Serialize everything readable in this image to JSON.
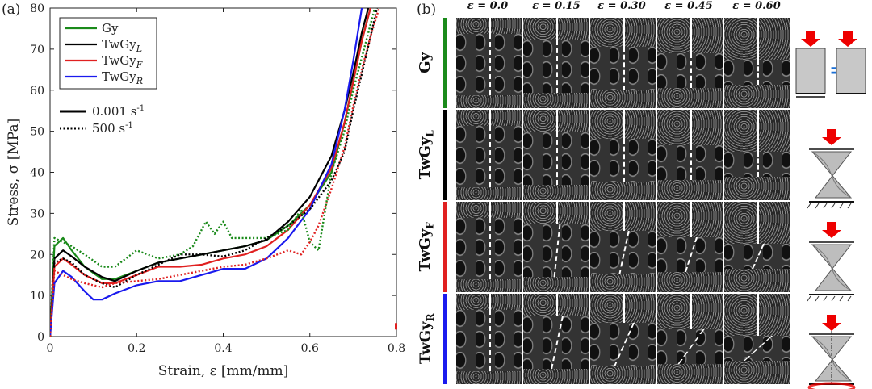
{
  "panel_a_label": "(a)",
  "panel_b_label": "(b)",
  "chart_data": {
    "type": "line",
    "xlabel": "Strain, ε [mm/mm]",
    "ylabel": "Stress, σ [MPa]",
    "xlim": [
      0,
      0.8
    ],
    "ylim": [
      0,
      80
    ],
    "xticks": [
      0,
      0.2,
      0.4,
      0.6,
      0.8
    ],
    "xtick_labels": [
      "0",
      "0.2",
      "0.4",
      "0.6",
      "0.8"
    ],
    "yticks": [
      0,
      10,
      20,
      30,
      40,
      50,
      60,
      70,
      80
    ],
    "ytick_labels": [
      "0",
      "10",
      "20",
      "30",
      "40",
      "50",
      "60",
      "70",
      "80"
    ],
    "legend_location": "top-left",
    "legend_main": [
      "Gy",
      "TwGy",
      "TwGy",
      "TwGy"
    ],
    "legend_sub": [
      "",
      "L",
      "F",
      "R"
    ],
    "legend_styles": [
      {
        "label": "0.001 s",
        "sup": "-1",
        "style": "solid"
      },
      {
        "label": "500 s",
        "sup": "-1",
        "style": "dotted"
      }
    ],
    "series": [
      {
        "name": "Gy",
        "rate": "0.001",
        "color": "#1a8a1a",
        "dash": "solid",
        "x": [
          0,
          0.01,
          0.03,
          0.05,
          0.08,
          0.12,
          0.15,
          0.2,
          0.25,
          0.3,
          0.35,
          0.4,
          0.45,
          0.5,
          0.55,
          0.6,
          0.65,
          0.68,
          0.7,
          0.72,
          0.74
        ],
        "y": [
          0,
          22,
          24,
          21,
          17,
          14,
          14,
          16,
          18,
          19,
          20,
          21,
          22,
          23.5,
          27,
          32,
          40,
          52,
          62,
          72,
          80
        ]
      },
      {
        "name": "TwGy_L",
        "rate": "0.001",
        "color": "#000000",
        "dash": "solid",
        "x": [
          0,
          0.01,
          0.03,
          0.05,
          0.08,
          0.12,
          0.15,
          0.2,
          0.25,
          0.3,
          0.35,
          0.4,
          0.45,
          0.5,
          0.55,
          0.6,
          0.65,
          0.68,
          0.7,
          0.72,
          0.735
        ],
        "y": [
          0,
          19,
          21,
          19.5,
          17,
          14.5,
          13.5,
          16,
          18,
          19,
          20,
          21,
          22,
          23.5,
          28,
          34,
          44,
          55,
          64,
          74,
          80
        ]
      },
      {
        "name": "TwGy_F",
        "rate": "0.001",
        "color": "#e02020",
        "dash": "solid",
        "x": [
          0,
          0.01,
          0.03,
          0.05,
          0.08,
          0.12,
          0.15,
          0.2,
          0.25,
          0.3,
          0.35,
          0.4,
          0.45,
          0.5,
          0.55,
          0.6,
          0.65,
          0.68,
          0.7,
          0.72,
          0.74
        ],
        "y": [
          0,
          17,
          19,
          17.5,
          15,
          13,
          13,
          15,
          17,
          17,
          17.5,
          19,
          20,
          22,
          26,
          32,
          41,
          52,
          62,
          72,
          80
        ]
      },
      {
        "name": "TwGy_R",
        "rate": "0.001",
        "color": "#1a1aee",
        "dash": "solid",
        "x": [
          0,
          0.01,
          0.03,
          0.05,
          0.08,
          0.1,
          0.12,
          0.15,
          0.2,
          0.25,
          0.3,
          0.35,
          0.4,
          0.45,
          0.5,
          0.55,
          0.6,
          0.65,
          0.68,
          0.7,
          0.72
        ],
        "y": [
          0,
          13,
          16,
          14.5,
          11,
          9,
          9,
          10.5,
          12.5,
          13.5,
          13.5,
          15,
          16.5,
          16.5,
          19,
          24,
          31,
          42,
          55,
          67,
          80
        ]
      },
      {
        "name": "Gy",
        "rate": "500",
        "color": "#1a8a1a",
        "dash": "dotted",
        "x": [
          0,
          0.01,
          0.03,
          0.05,
          0.08,
          0.12,
          0.15,
          0.2,
          0.25,
          0.3,
          0.33,
          0.36,
          0.38,
          0.4,
          0.42,
          0.45,
          0.5,
          0.55,
          0.58,
          0.6,
          0.62,
          0.65,
          0.68,
          0.7,
          0.73,
          0.75
        ],
        "y": [
          0,
          24,
          23,
          22,
          20,
          17,
          17,
          21,
          19,
          20,
          22,
          28,
          25,
          28,
          24,
          24,
          24,
          26,
          31,
          23,
          21,
          40,
          50,
          60,
          72,
          80
        ]
      },
      {
        "name": "TwGy_L",
        "rate": "500",
        "color": "#000000",
        "dash": "dotted",
        "x": [
          0,
          0.01,
          0.03,
          0.05,
          0.08,
          0.12,
          0.15,
          0.2,
          0.25,
          0.3,
          0.35,
          0.4,
          0.45,
          0.5,
          0.55,
          0.6,
          0.65,
          0.68,
          0.7,
          0.72,
          0.74,
          0.755
        ],
        "y": [
          0,
          18,
          19,
          18,
          15,
          13,
          12,
          15,
          17.5,
          20,
          20,
          19.5,
          21,
          24,
          27,
          31,
          38,
          45,
          55,
          64,
          73,
          80
        ]
      },
      {
        "name": "TwGy_F",
        "rate": "500",
        "color": "#e02020",
        "dash": "dotted",
        "x": [
          0,
          0.01,
          0.03,
          0.05,
          0.08,
          0.12,
          0.15,
          0.2,
          0.25,
          0.3,
          0.35,
          0.4,
          0.45,
          0.5,
          0.55,
          0.58,
          0.6,
          0.62,
          0.65,
          0.68,
          0.7,
          0.72,
          0.74,
          0.76
        ],
        "y": [
          0,
          16,
          15,
          14,
          13,
          12,
          13,
          13.5,
          14,
          15,
          16,
          17,
          17.5,
          19,
          21,
          20,
          23,
          27,
          36,
          46,
          56,
          65,
          73,
          80
        ]
      }
    ],
    "stray_point": {
      "x": 0.8,
      "y": 2.5,
      "color": "#e02020"
    }
  },
  "panel_b": {
    "strain_headers": [
      "ε = 0.0",
      "ε = 0.15",
      "ε = 0.30",
      "ε = 0.45",
      "ε = 0.60"
    ],
    "rows": [
      {
        "label": "Gy",
        "sub": "",
        "color": "#1a8a1a"
      },
      {
        "label": "TwGy",
        "sub": "L",
        "color": "#000000"
      },
      {
        "label": "TwGy",
        "sub": "F",
        "color": "#e02020"
      },
      {
        "label": "TwGy",
        "sub": "R",
        "color": "#1a1aee"
      }
    ],
    "equals_sign": "="
  }
}
